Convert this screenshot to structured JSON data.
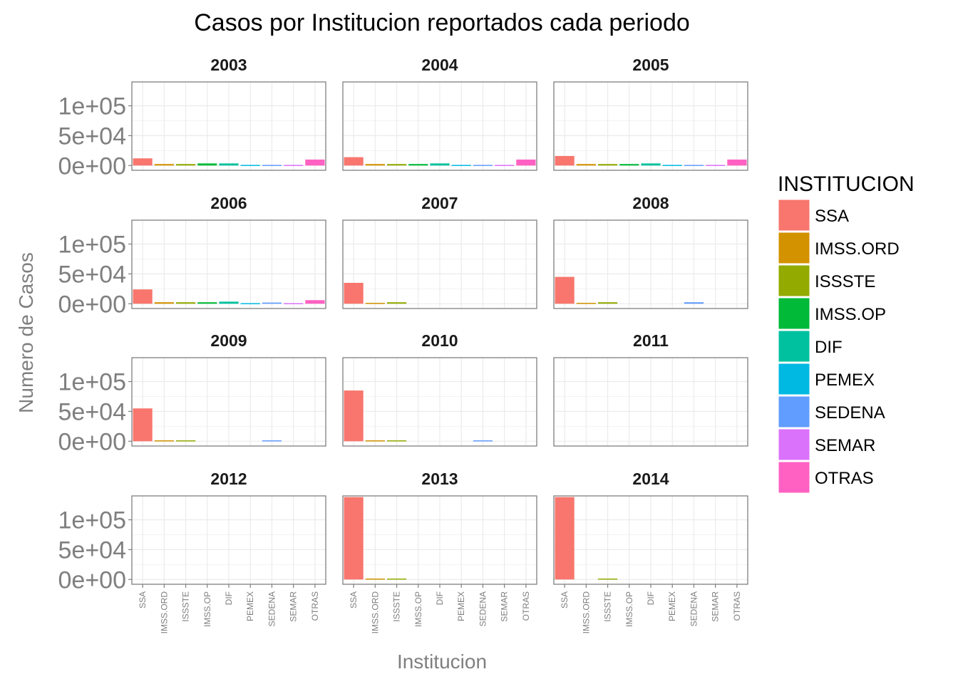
{
  "chart_data": {
    "type": "bar",
    "title": "Casos por Institucion reportados cada periodo",
    "xlabel": "Institucion",
    "ylabel": "Numero de Casos",
    "ylim": [
      -8000,
      140000
    ],
    "y_ticks": [
      0,
      50000,
      100000
    ],
    "y_tick_labels": [
      "0e+00",
      "5e+04",
      "1e+05"
    ],
    "categories": [
      "SSA",
      "IMSS.ORD",
      "ISSSTE",
      "IMSS.OP",
      "DIF",
      "PEMEX",
      "SEDENA",
      "SEMAR",
      "OTRAS"
    ],
    "colors": [
      "#F8766D",
      "#D39200",
      "#93AA00",
      "#00BA38",
      "#00C19F",
      "#00B9E3",
      "#619CFF",
      "#DB72FB",
      "#FF61C3"
    ],
    "grid": true,
    "legend": {
      "title": "INSTITUCION",
      "position": "right"
    },
    "panels": [
      {
        "label": "2003",
        "values": [
          12000,
          2500,
          2500,
          3500,
          3500,
          1000,
          1000,
          1000,
          10000
        ]
      },
      {
        "label": "2004",
        "values": [
          14000,
          2500,
          2500,
          2500,
          3500,
          1000,
          1000,
          1000,
          10000
        ]
      },
      {
        "label": "2005",
        "values": [
          16000,
          2500,
          2500,
          2500,
          3500,
          1000,
          1000,
          1000,
          10000
        ]
      },
      {
        "label": "2006",
        "values": [
          24000,
          2500,
          2500,
          2500,
          3500,
          1000,
          2000,
          1000,
          6000
        ]
      },
      {
        "label": "2007",
        "values": [
          35000,
          1500,
          2500,
          null,
          null,
          null,
          null,
          null,
          null
        ]
      },
      {
        "label": "2008",
        "values": [
          45000,
          1500,
          2500,
          null,
          null,
          null,
          2500,
          null,
          null
        ]
      },
      {
        "label": "2009",
        "values": [
          55000,
          1500,
          1500,
          null,
          null,
          null,
          1500,
          null,
          null
        ]
      },
      {
        "label": "2010",
        "values": [
          85000,
          1500,
          1500,
          null,
          null,
          null,
          1500,
          null,
          null
        ]
      },
      {
        "label": "2011",
        "values": [
          null,
          null,
          null,
          null,
          null,
          null,
          null,
          null,
          null
        ]
      },
      {
        "label": "2012",
        "values": [
          null,
          null,
          null,
          null,
          null,
          null,
          null,
          null,
          null
        ]
      },
      {
        "label": "2013",
        "values": [
          138000,
          1500,
          1500,
          null,
          null,
          null,
          null,
          null,
          null
        ]
      },
      {
        "label": "2014",
        "values": [
          138000,
          null,
          1500,
          null,
          null,
          null,
          null,
          null,
          null
        ]
      }
    ]
  }
}
